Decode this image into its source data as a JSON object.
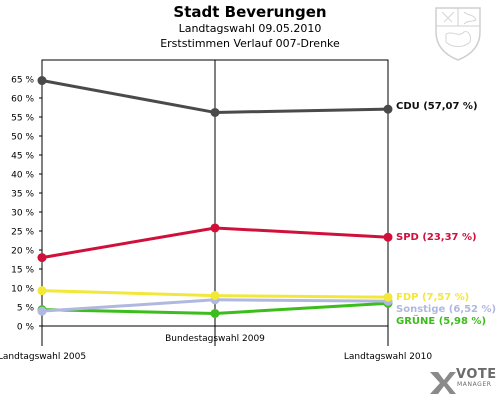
{
  "header": {
    "title": "Stadt Beverungen",
    "subtitle1": "Landtagswahl 09.05.2010",
    "subtitle2": "Erststimmen Verlauf 007-Drenke"
  },
  "logo": {
    "name": "VOTE",
    "tagline": "MANAGER"
  },
  "chart_data": {
    "type": "line",
    "x": [
      "Landtagswahl 2005",
      "Bundestagswahl 2009",
      "Landtagswahl 2010"
    ],
    "ylim": [
      0,
      70
    ],
    "yticks": [
      "0 %",
      "5 %",
      "10 %",
      "15 %",
      "20 %",
      "25 %",
      "30 %",
      "35 %",
      "40 %",
      "45 %",
      "50 %",
      "55 %",
      "60 %",
      "65 %"
    ],
    "grid": false,
    "series": [
      {
        "name": "CDU",
        "label": "CDU (57,07 %)",
        "color": "#4a4a4a",
        "values": [
          64.6,
          56.2,
          57.07
        ]
      },
      {
        "name": "SPD",
        "label": "SPD (23,37 %)",
        "color": "#d0103a",
        "values": [
          18.0,
          25.8,
          23.37
        ]
      },
      {
        "name": "FDP",
        "label": "FDP (7,57 %)",
        "color": "#f2e83a",
        "values": [
          9.3,
          8.0,
          7.57
        ]
      },
      {
        "name": "Sonstige",
        "label": "Sonstige (6,52 %)",
        "color": "#b0b8e0",
        "values": [
          3.9,
          6.9,
          6.52
        ]
      },
      {
        "name": "GRÜNE",
        "label": "GRÜNE (5,98 %)",
        "color": "#3cbd1c",
        "values": [
          4.3,
          3.3,
          5.98
        ]
      }
    ]
  }
}
